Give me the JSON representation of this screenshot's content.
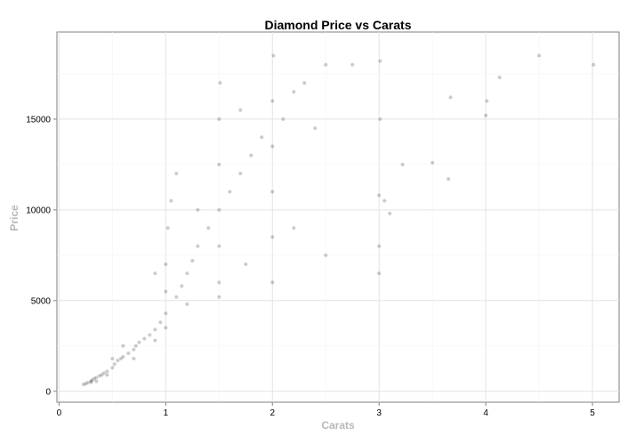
{
  "chart_data": {
    "type": "scatter",
    "title": "Diamond Price vs Carats",
    "xlabel": "Carats",
    "ylabel": "Price",
    "xlim": [
      -0.02,
      5.25
    ],
    "ylim": [
      -600,
      19800
    ],
    "x_ticks": [
      0,
      1,
      2,
      3,
      4,
      5
    ],
    "x_tick_labels": [
      "0",
      "1",
      "2",
      "3",
      "4",
      "5"
    ],
    "y_ticks": [
      0,
      5000,
      10000,
      15000
    ],
    "y_tick_labels": [
      "0",
      "5000",
      "10000",
      "15000"
    ],
    "grid": true,
    "legend": "none",
    "point_color": "#000000",
    "point_alpha": 0.2,
    "series": [
      {
        "points": [
          [
            0.23,
            380
          ],
          [
            0.25,
            420
          ],
          [
            0.27,
            480
          ],
          [
            0.3,
            500
          ],
          [
            0.3,
            560
          ],
          [
            0.31,
            620
          ],
          [
            0.33,
            700
          ],
          [
            0.35,
            760
          ],
          [
            0.38,
            850
          ],
          [
            0.4,
            900
          ],
          [
            0.42,
            1000
          ],
          [
            0.45,
            1100
          ],
          [
            0.5,
            1300
          ],
          [
            0.52,
            1500
          ],
          [
            0.55,
            1700
          ],
          [
            0.58,
            1800
          ],
          [
            0.6,
            1900
          ],
          [
            0.65,
            2100
          ],
          [
            0.7,
            2300
          ],
          [
            0.72,
            2500
          ],
          [
            0.75,
            2700
          ],
          [
            0.8,
            2900
          ],
          [
            0.85,
            3100
          ],
          [
            0.9,
            3400
          ],
          [
            0.95,
            3800
          ],
          [
            1.0,
            4300
          ],
          [
            1.0,
            5500
          ],
          [
            1.0,
            7000
          ],
          [
            1.02,
            9000
          ],
          [
            1.05,
            10500
          ],
          [
            1.1,
            5200
          ],
          [
            1.15,
            5800
          ],
          [
            1.2,
            6500
          ],
          [
            1.25,
            7200
          ],
          [
            1.3,
            8000
          ],
          [
            1.4,
            9000
          ],
          [
            1.5,
            6000
          ],
          [
            1.5,
            8000
          ],
          [
            1.5,
            10000
          ],
          [
            1.5,
            12500
          ],
          [
            1.5,
            15000
          ],
          [
            1.51,
            17000
          ],
          [
            1.6,
            11000
          ],
          [
            1.7,
            12000
          ],
          [
            1.7,
            15500
          ],
          [
            1.8,
            13000
          ],
          [
            1.9,
            14000
          ],
          [
            2.0,
            8500
          ],
          [
            2.0,
            11000
          ],
          [
            2.0,
            13500
          ],
          [
            2.0,
            16000
          ],
          [
            2.01,
            18500
          ],
          [
            2.1,
            15000
          ],
          [
            2.2,
            16500
          ],
          [
            2.3,
            17000
          ],
          [
            2.5,
            18000
          ],
          [
            0.35,
            550
          ],
          [
            0.45,
            900
          ],
          [
            0.7,
            1800
          ],
          [
            0.9,
            2800
          ],
          [
            1.0,
            3500
          ],
          [
            1.2,
            4800
          ],
          [
            1.5,
            5200
          ],
          [
            2.0,
            6000
          ],
          [
            2.5,
            7500
          ],
          [
            3.0,
            6500
          ],
          [
            3.0,
            8000
          ],
          [
            3.0,
            10800
          ],
          [
            3.01,
            15000
          ],
          [
            3.01,
            18200
          ],
          [
            3.05,
            10500
          ],
          [
            3.1,
            9800
          ],
          [
            3.22,
            12500
          ],
          [
            3.5,
            12600
          ],
          [
            3.65,
            11700
          ],
          [
            3.67,
            16200
          ],
          [
            4.0,
            15200
          ],
          [
            4.01,
            16000
          ],
          [
            4.13,
            17300
          ],
          [
            4.5,
            18500
          ],
          [
            5.01,
            18000
          ],
          [
            2.75,
            18000
          ],
          [
            2.4,
            14500
          ],
          [
            2.2,
            9000
          ],
          [
            1.75,
            7000
          ],
          [
            1.3,
            10000
          ],
          [
            1.1,
            12000
          ],
          [
            0.9,
            6500
          ],
          [
            0.6,
            2500
          ],
          [
            0.5,
            1800
          ]
        ]
      }
    ]
  }
}
